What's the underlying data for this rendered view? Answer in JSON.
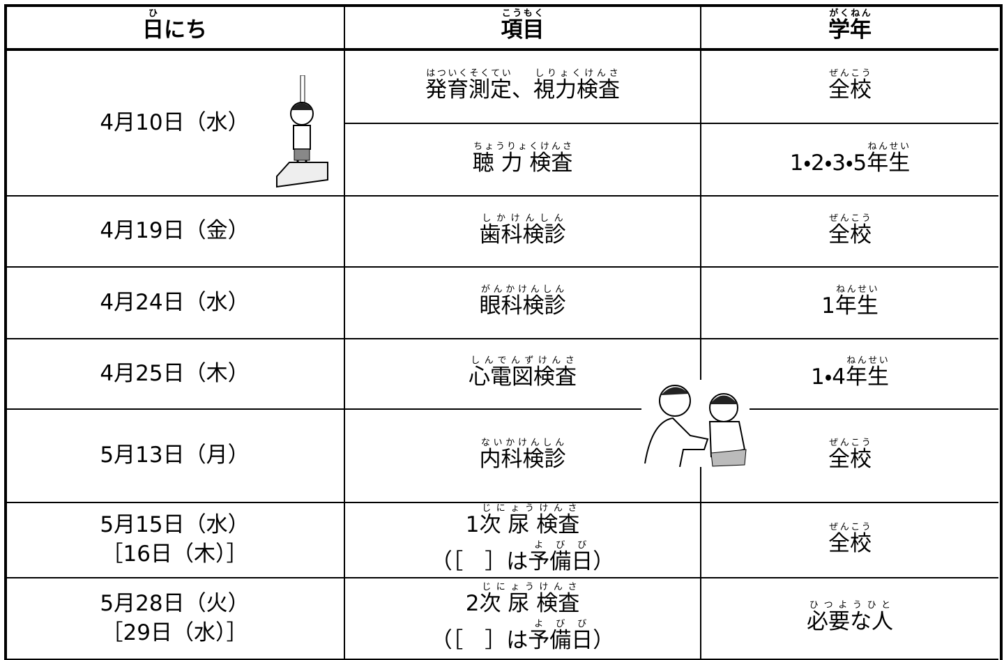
{
  "header": [
    [
      [
        {
          "base": "日",
          "ruby": "ひ"
        },
        "にち"
      ]
    ],
    [
      [
        {
          "base": "項目",
          "ruby": "こうもく"
        }
      ]
    ],
    [
      [
        {
          "base": "学年",
          "ruby": "がくねん"
        }
      ]
    ]
  ],
  "rows": [
    {
      "date": [
        [
          "4月10日（水）"
        ]
      ],
      "items": [
        {
          "item": [
            [
              {
                "base": "発育測定",
                "ruby": "はついくそくてい"
              },
              "、",
              {
                "base": "視力検査",
                "ruby": "しりょくけんさ"
              }
            ]
          ],
          "grade": [
            [
              {
                "base": "全校",
                "ruby": "ぜんこう"
              }
            ]
          ]
        },
        {
          "item": [
            [
              {
                "base": "聴 力 検査",
                "ruby": "ちょうりょくけんさ"
              }
            ]
          ],
          "grade": [
            [
              "1・2・3・5",
              {
                "base": "年生",
                "ruby": "ねんせい"
              }
            ]
          ]
        }
      ]
    },
    {
      "date": [
        [
          "4月19日（金）"
        ]
      ],
      "items": [
        {
          "item": [
            [
              {
                "base": "歯科検診",
                "ruby": "しかけんしん"
              }
            ]
          ],
          "grade": [
            [
              {
                "base": "全校",
                "ruby": "ぜんこう"
              }
            ]
          ]
        }
      ]
    },
    {
      "date": [
        [
          "4月24日（水）"
        ]
      ],
      "items": [
        {
          "item": [
            [
              {
                "base": "眼科検診",
                "ruby": "がんかけんしん"
              }
            ]
          ],
          "grade": [
            [
              "1",
              {
                "base": "年生",
                "ruby": "ねんせい"
              }
            ]
          ]
        }
      ]
    },
    {
      "date": [
        [
          "4月25日（木）"
        ]
      ],
      "items": [
        {
          "item": [
            [
              {
                "base": "心電図検査",
                "ruby": "しんでんずけんさ"
              }
            ]
          ],
          "grade": [
            [
              "1・4",
              {
                "base": "年生",
                "ruby": "ねんせい"
              }
            ]
          ]
        }
      ]
    },
    {
      "date": [
        [
          "5月13日（月）"
        ]
      ],
      "items": [
        {
          "item": [
            [
              {
                "base": "内科検診",
                "ruby": "ないかけんしん"
              }
            ]
          ],
          "grade": [
            [
              {
                "base": "全校",
                "ruby": "ぜんこう"
              }
            ]
          ]
        }
      ]
    },
    {
      "date": [
        [
          "5月15日（水）"
        ],
        [
          "［16日（木）］"
        ]
      ],
      "items": [
        {
          "item": [
            [
              "1",
              {
                "base": "次 尿 検査",
                "ruby": "じにょうけんさ"
              }
            ],
            [
              "（［　］は",
              {
                "base": "予備日",
                "ruby": "よびび"
              },
              "）"
            ]
          ],
          "grade": [
            [
              {
                "base": "全校",
                "ruby": "ぜんこう"
              }
            ]
          ]
        }
      ]
    },
    {
      "date": [
        [
          "5月28日（火）"
        ],
        [
          "［29日（水）］"
        ]
      ],
      "items": [
        {
          "item": [
            [
              "2",
              {
                "base": "次 尿 検査",
                "ruby": "じにょうけんさ"
              }
            ],
            [
              "（［　］は",
              {
                "base": "予備日",
                "ruby": "よびび"
              },
              "）"
            ]
          ],
          "grade": [
            [
              {
                "base": "必要な人",
                "ruby": "ひつようひと"
              }
            ]
          ]
        }
      ]
    }
  ]
}
